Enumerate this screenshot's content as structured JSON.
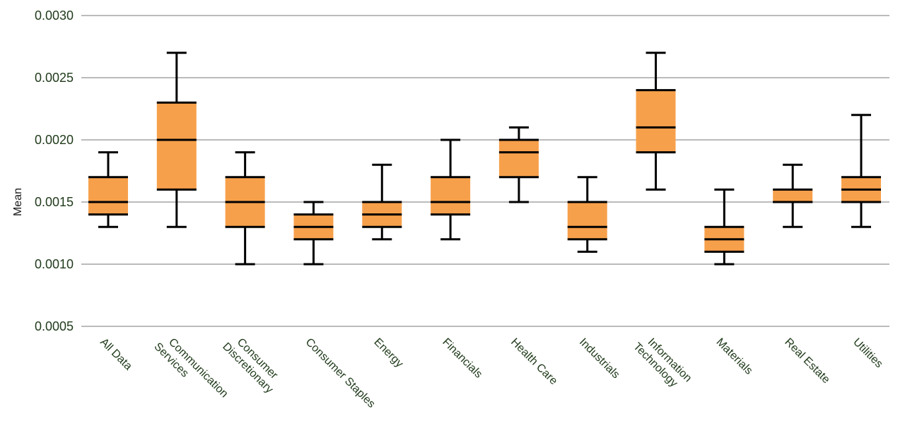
{
  "chart_data": {
    "type": "boxplot",
    "title": "",
    "xlabel": "",
    "ylabel": "Mean",
    "ylim": [
      0.0005,
      0.003
    ],
    "yticks": [
      "0.0005",
      "0.0010",
      "0.0015",
      "0.0020",
      "0.0025",
      "0.0030"
    ],
    "grid": true,
    "box_color": "#f7a04b",
    "line_color": "#000000",
    "categories": [
      [
        "All Data"
      ],
      [
        "Communication",
        "Services"
      ],
      [
        "Consumer",
        "Discretionary"
      ],
      [
        "Consumer Staples"
      ],
      [
        "Energy"
      ],
      [
        "Financials"
      ],
      [
        "Health Care"
      ],
      [
        "Industrials"
      ],
      [
        "Information",
        "Technology"
      ],
      [
        "Materials"
      ],
      [
        "Real Estate"
      ],
      [
        "Utilities"
      ]
    ],
    "series": [
      {
        "min": [
          0.0013,
          0.0013,
          0.001,
          0.001,
          0.0012,
          0.0012,
          0.0015,
          0.0011,
          0.0016,
          0.001,
          0.0013,
          0.0013
        ],
        "q1": [
          0.0014,
          0.0016,
          0.0013,
          0.0012,
          0.0013,
          0.0014,
          0.0017,
          0.0012,
          0.0019,
          0.0011,
          0.0015,
          0.0015
        ],
        "median": [
          0.0015,
          0.002,
          0.0015,
          0.0013,
          0.0014,
          0.0015,
          0.0019,
          0.0013,
          0.0021,
          0.0012,
          0.0015,
          0.0016
        ],
        "q3": [
          0.0017,
          0.0023,
          0.0017,
          0.0014,
          0.0015,
          0.0017,
          0.002,
          0.0015,
          0.0024,
          0.0013,
          0.0016,
          0.0017
        ],
        "max": [
          0.0019,
          0.0027,
          0.0019,
          0.0015,
          0.0018,
          0.002,
          0.0021,
          0.0017,
          0.0027,
          0.0016,
          0.0018,
          0.0022
        ]
      }
    ]
  }
}
